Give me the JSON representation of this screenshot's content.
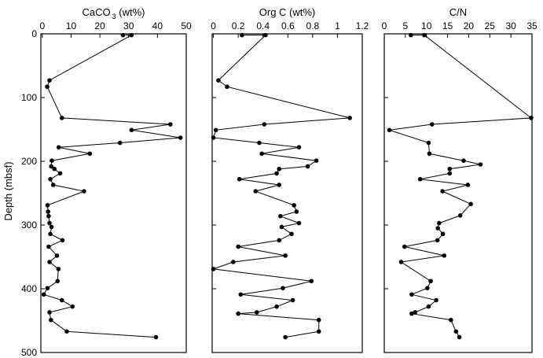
{
  "figure": {
    "y_axis_label": "Depth (mbsf)"
  },
  "chart_data": [
    {
      "type": "scatter",
      "title_main": "CaCO",
      "title_sub": "3",
      "title_suffix": " (wt%)",
      "xlim": [
        -0.5,
        50
      ],
      "xticks": [
        0,
        10,
        20,
        30,
        40,
        50
      ],
      "xtick_labels": [
        "0",
        "10",
        "20",
        "30",
        "40",
        "50"
      ],
      "ylim": [
        0,
        500
      ],
      "yticks": [
        0,
        100,
        200,
        300,
        400,
        500
      ],
      "ytick_labels": [
        "0",
        "100",
        "200",
        "300",
        "400",
        "500"
      ],
      "y_inverted": true,
      "points": [
        {
          "x": 28,
          "y": 2
        },
        {
          "x": 31,
          "y": 2
        },
        {
          "x": 2.5,
          "y": 73
        },
        {
          "x": 1.7,
          "y": 83
        },
        {
          "x": 6.8,
          "y": 132
        },
        {
          "x": 44.5,
          "y": 142
        },
        {
          "x": 31,
          "y": 151
        },
        {
          "x": 48,
          "y": 163
        },
        {
          "x": 27,
          "y": 171
        },
        {
          "x": 5.7,
          "y": 178
        },
        {
          "x": 16.5,
          "y": 188
        },
        {
          "x": 3.3,
          "y": 199
        },
        {
          "x": 3.1,
          "y": 208
        },
        {
          "x": 4.2,
          "y": 212
        },
        {
          "x": 6.2,
          "y": 219
        },
        {
          "x": 2.8,
          "y": 228
        },
        {
          "x": 3.8,
          "y": 237
        },
        {
          "x": 14.5,
          "y": 247
        },
        {
          "x": 1.8,
          "y": 269
        },
        {
          "x": 2.0,
          "y": 279
        },
        {
          "x": 2.2,
          "y": 286
        },
        {
          "x": 2.5,
          "y": 297
        },
        {
          "x": 3.2,
          "y": 303
        },
        {
          "x": 2.8,
          "y": 314
        },
        {
          "x": 7.0,
          "y": 324
        },
        {
          "x": 2.2,
          "y": 334
        },
        {
          "x": 5.1,
          "y": 348
        },
        {
          "x": 2.5,
          "y": 358
        },
        {
          "x": 5.6,
          "y": 369
        },
        {
          "x": 5.3,
          "y": 388
        },
        {
          "x": 1.8,
          "y": 399
        },
        {
          "x": 0.5,
          "y": 409
        },
        {
          "x": 6.8,
          "y": 418
        },
        {
          "x": 10.5,
          "y": 428
        },
        {
          "x": 2.5,
          "y": 437
        },
        {
          "x": 3.0,
          "y": 449
        },
        {
          "x": 8.5,
          "y": 467
        },
        {
          "x": 39.5,
          "y": 476
        }
      ]
    },
    {
      "type": "scatter",
      "title_main": "Org C (wt%)",
      "title_sub": "",
      "title_suffix": "",
      "xlim": [
        -0.01,
        1.2
      ],
      "xticks": [
        0,
        0.2,
        0.4,
        0.6,
        0.8,
        1.0,
        1.2
      ],
      "xtick_labels": [
        "0",
        "0.2",
        "0.4",
        "0.6",
        "0.8",
        "1",
        "1.2"
      ],
      "ylim": [
        0,
        500
      ],
      "y_inverted": true,
      "points": [
        {
          "x": 0.23,
          "y": 2
        },
        {
          "x": 0.42,
          "y": 2
        },
        {
          "x": 0.04,
          "y": 73
        },
        {
          "x": 0.11,
          "y": 83
        },
        {
          "x": 1.1,
          "y": 132
        },
        {
          "x": 0.41,
          "y": 142
        },
        {
          "x": 0.02,
          "y": 151
        },
        {
          "x": 0.0,
          "y": 163
        },
        {
          "x": 0.37,
          "y": 171
        },
        {
          "x": 0.69,
          "y": 178
        },
        {
          "x": 0.39,
          "y": 188
        },
        {
          "x": 0.83,
          "y": 199
        },
        {
          "x": 0.76,
          "y": 208
        },
        {
          "x": 0.53,
          "y": 212
        },
        {
          "x": 0.51,
          "y": 219
        },
        {
          "x": 0.21,
          "y": 228
        },
        {
          "x": 0.53,
          "y": 237
        },
        {
          "x": 0.34,
          "y": 247
        },
        {
          "x": 0.65,
          "y": 269
        },
        {
          "x": 0.67,
          "y": 279
        },
        {
          "x": 0.54,
          "y": 286
        },
        {
          "x": 0.69,
          "y": 297
        },
        {
          "x": 0.55,
          "y": 303
        },
        {
          "x": 0.63,
          "y": 314
        },
        {
          "x": 0.53,
          "y": 324
        },
        {
          "x": 0.2,
          "y": 334
        },
        {
          "x": 0.58,
          "y": 348
        },
        {
          "x": 0.16,
          "y": 358
        },
        {
          "x": 0.0,
          "y": 369
        },
        {
          "x": 0.79,
          "y": 388
        },
        {
          "x": 0.56,
          "y": 399
        },
        {
          "x": 0.22,
          "y": 409
        },
        {
          "x": 0.64,
          "y": 418
        },
        {
          "x": 0.51,
          "y": 428
        },
        {
          "x": 0.35,
          "y": 437
        },
        {
          "x": 0.2,
          "y": 439
        },
        {
          "x": 0.85,
          "y": 449
        },
        {
          "x": 0.85,
          "y": 467
        },
        {
          "x": 0.58,
          "y": 476
        }
      ]
    },
    {
      "type": "scatter",
      "title_main": "C/N",
      "title_sub": "",
      "title_suffix": "",
      "xlim": [
        0,
        35
      ],
      "xticks": [
        0,
        5,
        10,
        15,
        20,
        25,
        30,
        35
      ],
      "xtick_labels": [
        "0",
        "5",
        "10",
        "15",
        "20",
        "25",
        "30",
        "35"
      ],
      "ylim": [
        0,
        500
      ],
      "y_inverted": true,
      "points": [
        {
          "x": 6.3,
          "y": 2
        },
        {
          "x": 9.5,
          "y": 2
        },
        {
          "x": 34.8,
          "y": 132
        },
        {
          "x": 11.3,
          "y": 142
        },
        {
          "x": 1.2,
          "y": 151
        },
        {
          "x": 10.5,
          "y": 171
        },
        {
          "x": 10.7,
          "y": 188
        },
        {
          "x": 18.8,
          "y": 199
        },
        {
          "x": 22.8,
          "y": 205
        },
        {
          "x": 15.5,
          "y": 212
        },
        {
          "x": 15.5,
          "y": 219
        },
        {
          "x": 8.5,
          "y": 228
        },
        {
          "x": 19.8,
          "y": 237
        },
        {
          "x": 13.8,
          "y": 247
        },
        {
          "x": 20.5,
          "y": 267
        },
        {
          "x": 18.0,
          "y": 285
        },
        {
          "x": 13.0,
          "y": 297
        },
        {
          "x": 12.7,
          "y": 305
        },
        {
          "x": 13.9,
          "y": 314
        },
        {
          "x": 12.6,
          "y": 324
        },
        {
          "x": 4.8,
          "y": 334
        },
        {
          "x": 14.2,
          "y": 348
        },
        {
          "x": 4.0,
          "y": 358
        },
        {
          "x": 11.0,
          "y": 388
        },
        {
          "x": 10.2,
          "y": 399
        },
        {
          "x": 6.5,
          "y": 409
        },
        {
          "x": 12.3,
          "y": 418
        },
        {
          "x": 10.5,
          "y": 428
        },
        {
          "x": 7.3,
          "y": 437
        },
        {
          "x": 6.5,
          "y": 439
        },
        {
          "x": 15.8,
          "y": 449
        },
        {
          "x": 17.0,
          "y": 467
        },
        {
          "x": 17.8,
          "y": 476
        }
      ]
    }
  ]
}
